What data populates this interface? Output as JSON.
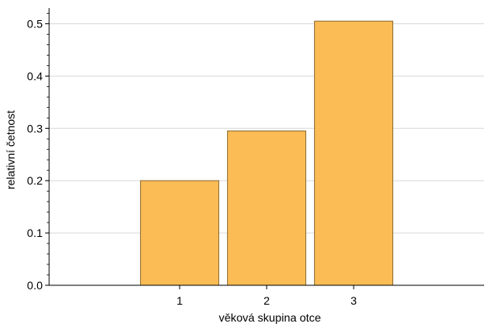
{
  "chart_data": {
    "type": "bar",
    "categories": [
      "1",
      "2",
      "3"
    ],
    "values": [
      0.2,
      0.295,
      0.505
    ],
    "xlabel": "věková skupina otce",
    "ylabel": "relativní četnost",
    "ylim": [
      0,
      0.53
    ],
    "xlim": [
      0,
      5
    ],
    "yticks": [
      "0.0",
      "0.1",
      "0.2",
      "0.3",
      "0.4",
      "0.5"
    ],
    "grid": "horizontal",
    "colors": {
      "bar_fill": "#FBBC55",
      "bar_stroke": "#8C6A2E",
      "grid": "#D9D9D9",
      "axis": "#000000"
    }
  }
}
